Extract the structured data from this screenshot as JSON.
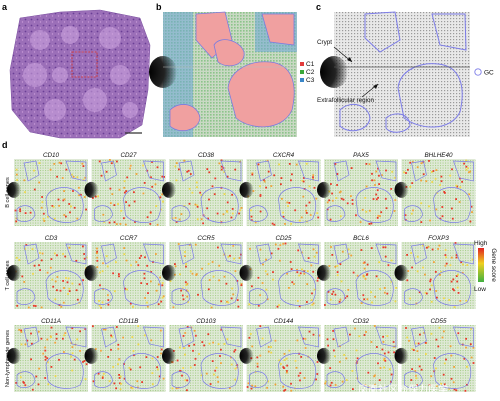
{
  "panels": {
    "a": "a",
    "b": "b",
    "c": "c",
    "d": "d"
  },
  "panel_b_legend": [
    {
      "label": "C1",
      "color": "#e23b3b"
    },
    {
      "label": "C2",
      "color": "#3aa83a"
    },
    {
      "label": "C3",
      "color": "#3a86c8"
    }
  ],
  "panel_c": {
    "crypt_label": "Crypt",
    "extrafollicular_label": "Extrafollicular region",
    "legend_label": "GC",
    "legend_color": "#7d7de8"
  },
  "panel_d": {
    "rows": [
      {
        "label": "B cell genes",
        "genes": [
          "CD10",
          "CD27",
          "CD38",
          "CXCR4",
          "PAX5",
          "BHLHE40"
        ]
      },
      {
        "label": "T cell genes",
        "genes": [
          "CD3",
          "CCR7",
          "CCR5",
          "CD25",
          "BCL6",
          "FOXP3"
        ]
      },
      {
        "label": "Non-lymphocyte genes",
        "genes": [
          "CD11A",
          "CD11B",
          "CD103",
          "CD144",
          "CD32",
          "CD55"
        ]
      }
    ],
    "scale": {
      "high": "High",
      "low": "Low",
      "title": "Gene score"
    }
  },
  "watermark": "凤凰社区@保力医学"
}
